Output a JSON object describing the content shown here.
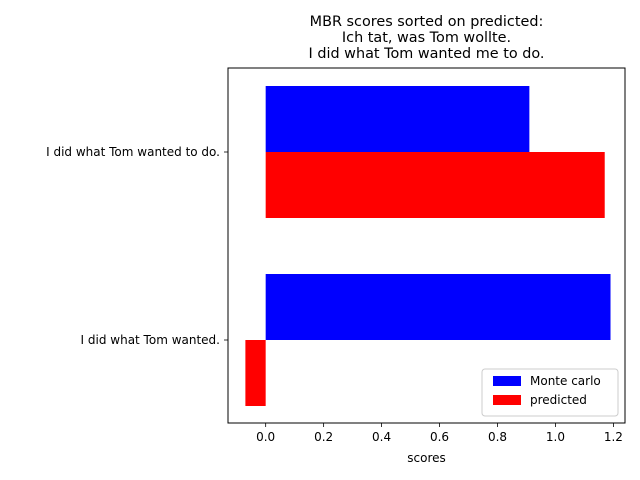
{
  "chart_data": {
    "type": "bar",
    "orientation": "horizontal",
    "title_lines": [
      "MBR scores sorted on predicted:",
      "Ich tat, was Tom wollte.",
      "I did what Tom wanted me to do."
    ],
    "xlabel": "scores",
    "ylabel": "",
    "categories": [
      "I did what Tom wanted to do.",
      "I did what Tom wanted."
    ],
    "series": [
      {
        "name": "Monte carlo",
        "color": "#0000ff",
        "values": [
          0.91,
          1.19
        ]
      },
      {
        "name": "predicted",
        "color": "#ff0000",
        "values": [
          1.17,
          -0.07
        ]
      }
    ],
    "xlim": [
      -0.13,
      1.24
    ],
    "xticks": [
      0.0,
      0.2,
      0.4,
      0.6,
      0.8,
      1.0,
      1.2
    ],
    "xtick_labels": [
      "0.0",
      "0.2",
      "0.4",
      "0.6",
      "0.8",
      "1.0",
      "1.2"
    ],
    "grid": false,
    "legend_position": "lower-right"
  }
}
